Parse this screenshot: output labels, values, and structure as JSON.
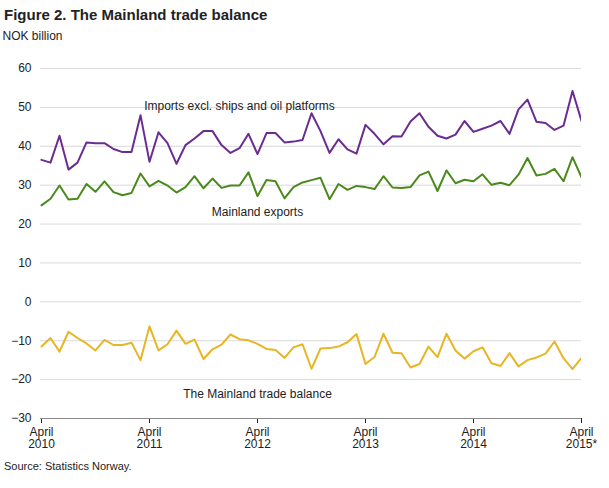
{
  "chart_data": {
    "type": "line",
    "title": "Figure 2. The Mainland trade balance",
    "y_label": "NOK billion",
    "source": "Source: Statistics Norway.",
    "categories": [
      "April\n2010",
      null,
      null,
      null,
      null,
      null,
      null,
      null,
      null,
      null,
      null,
      null,
      "April\n2011",
      null,
      null,
      null,
      null,
      null,
      null,
      null,
      null,
      null,
      null,
      null,
      "April\n2012",
      null,
      null,
      null,
      null,
      null,
      null,
      null,
      null,
      null,
      null,
      null,
      "April\n2013",
      null,
      null,
      null,
      null,
      null,
      null,
      null,
      null,
      null,
      null,
      null,
      "April\n2014",
      null,
      null,
      null,
      null,
      null,
      null,
      null,
      null,
      null,
      null,
      null,
      "April\n2015*"
    ],
    "series": [
      {
        "name": "Imports excl. ships and oil platforms",
        "color": "#6b2c91",
        "values": [
          36.5,
          35.8,
          42.7,
          34,
          35.8,
          41,
          40.8,
          40.8,
          39.3,
          38.5,
          38.5,
          48,
          36,
          43.6,
          40.8,
          35.5,
          40.3,
          42,
          43.9,
          43.9,
          40.3,
          38.3,
          39.5,
          43.2,
          38,
          43.4,
          43.4,
          41,
          41.2,
          41.6,
          48.5,
          43.9,
          38.3,
          41.8,
          39.2,
          38.1,
          45.5,
          43.2,
          40.5,
          42.6,
          42.5,
          46.4,
          48.5,
          45,
          42.7,
          42,
          43,
          46.5,
          43.7,
          44.5,
          45.3,
          46.5,
          43.2,
          49.5,
          52,
          46.3,
          46,
          44.2,
          45.3,
          54.2,
          46.5
        ]
      },
      {
        "name": "Mainland exports",
        "color": "#4a8a1c",
        "values": [
          24.8,
          26.5,
          29.9,
          26.3,
          26.5,
          30.3,
          28.3,
          31,
          28.2,
          27.4,
          28,
          33,
          29.7,
          31.1,
          29.9,
          28.1,
          29.5,
          32.3,
          29.2,
          31.7,
          29.3,
          29.9,
          29.9,
          33.3,
          27.2,
          31.3,
          31,
          26.6,
          29.5,
          30.7,
          31.3,
          31.9,
          26.4,
          30.3,
          28.8,
          29.8,
          29.5,
          29,
          32.3,
          29.4,
          29.3,
          29.5,
          32.5,
          33.5,
          28.5,
          33.8,
          30.5,
          31.4,
          31,
          32.8,
          30.1,
          30.6,
          30,
          32.7,
          37,
          32.5,
          32.9,
          34.2,
          31,
          37.2,
          32
        ]
      },
      {
        "name": "The Mainland trade balance",
        "color": "#e8b524",
        "values": [
          -11.5,
          -9.3,
          -12.8,
          -7.7,
          -9.3,
          -10.7,
          -12.5,
          -9.8,
          -11.1,
          -11.1,
          -10.5,
          -15,
          -6.3,
          -12.5,
          -10.9,
          -7.4,
          -10.8,
          -9.7,
          -14.7,
          -12.2,
          -11,
          -8.4,
          -9.6,
          -9.9,
          -10.8,
          -12.1,
          -12.4,
          -14.4,
          -11.7,
          -10.9,
          -17.2,
          -12,
          -11.9,
          -11.5,
          -10.4,
          -8.3,
          -16,
          -14.2,
          -8.2,
          -13.1,
          -13.2,
          -16.9,
          -16,
          -11.5,
          -14.2,
          -8.2,
          -12.5,
          -14.6,
          -12.7,
          -11.7,
          -15.8,
          -16.5,
          -13.2,
          -16.6,
          -15,
          -14.3,
          -13.3,
          -10.2,
          -14.5,
          -17.3,
          -14.4
        ]
      }
    ],
    "ylim": [
      -30,
      60
    ],
    "yticks": [
      -30,
      -20,
      -10,
      0,
      10,
      20,
      30,
      40,
      50,
      60
    ],
    "grid": true
  }
}
